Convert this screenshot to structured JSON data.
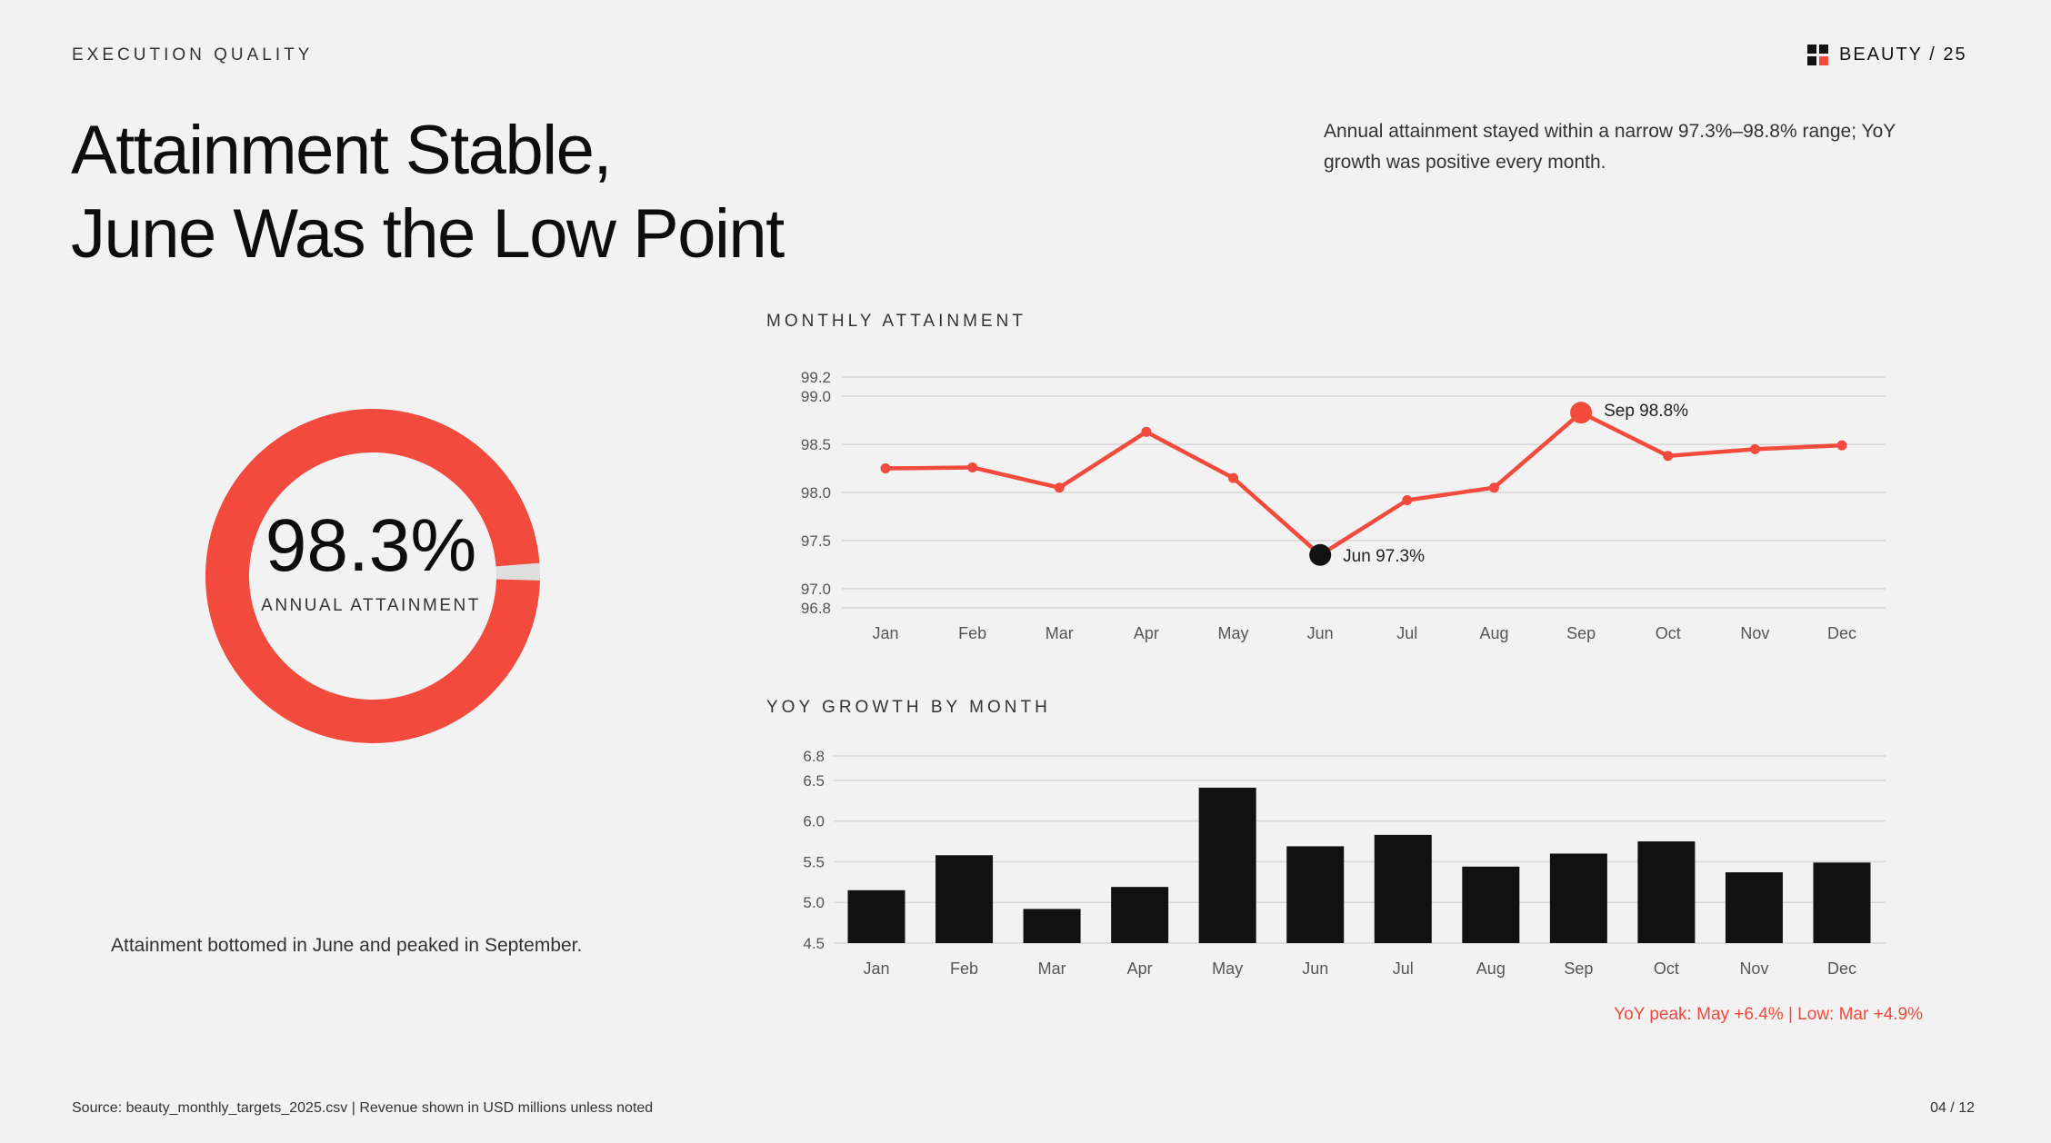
{
  "header": {
    "eyebrow": "EXECUTION QUALITY",
    "brand": "BEAUTY / 25",
    "title_line1": "Attainment Stable,",
    "title_line2": "June Was the Low Point",
    "summary": "Annual attainment stayed within a narrow 97.3%–98.8% range; YoY growth was positive every month."
  },
  "donut": {
    "value_label": "98.3%",
    "value": 98.3,
    "caption": "ANNUAL ATTAINMENT",
    "note": "Attainment bottomed in June and peaked in September."
  },
  "colors": {
    "accent": "#f24a3c",
    "ink": "#111111",
    "grid": "#d6d6d6",
    "track": "#dedede"
  },
  "line_section_label": "MONTHLY ATTAINMENT",
  "bar_section_label": "YOY GROWTH BY MONTH",
  "callout": "YoY peak: May +6.4%  |  Low: Mar +4.9%",
  "footer": {
    "source": "Source: beauty_monthly_targets_2025.csv  |  Revenue shown in USD millions unless noted",
    "page": "04 / 12"
  },
  "chart_data": [
    {
      "type": "line",
      "title": "MONTHLY ATTAINMENT",
      "categories": [
        "Jan",
        "Feb",
        "Mar",
        "Apr",
        "May",
        "Jun",
        "Jul",
        "Aug",
        "Sep",
        "Oct",
        "Nov",
        "Dec"
      ],
      "values": [
        98.25,
        98.26,
        98.05,
        98.63,
        98.15,
        97.35,
        97.92,
        98.05,
        98.83,
        98.38,
        98.45,
        98.49
      ],
      "ylim": [
        96.8,
        99.2
      ],
      "yticks": [
        "96.8",
        "97.0",
        "97.5",
        "98.0",
        "98.5",
        "99.0",
        "99.2"
      ],
      "annotations": [
        {
          "category": "Jun",
          "text": "Jun  97.3%"
        },
        {
          "category": "Sep",
          "text": "Sep  98.8%"
        }
      ],
      "grid": true
    },
    {
      "type": "bar",
      "title": "YOY GROWTH BY MONTH",
      "categories": [
        "Jan",
        "Feb",
        "Mar",
        "Apr",
        "May",
        "Jun",
        "Jul",
        "Aug",
        "Sep",
        "Oct",
        "Nov",
        "Dec"
      ],
      "values": [
        5.15,
        5.58,
        4.92,
        5.19,
        6.41,
        5.69,
        5.83,
        5.44,
        5.6,
        5.75,
        5.37,
        5.49
      ],
      "ylim": [
        4.5,
        6.8
      ],
      "yticks": [
        "4.5",
        "5.0",
        "5.5",
        "6.0",
        "6.5",
        "6.8"
      ],
      "grid": true
    }
  ]
}
